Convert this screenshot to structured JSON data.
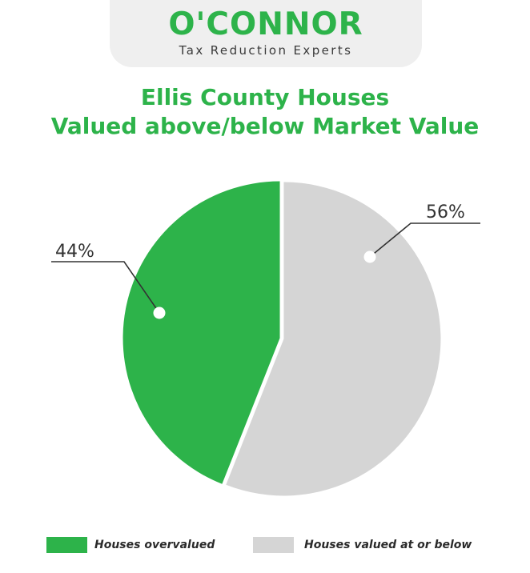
{
  "logo": {
    "brand": "O'CONNOR",
    "tagline": "Tax Reduction Experts"
  },
  "chart_data": {
    "type": "pie",
    "title_lines": [
      "Ellis County Houses",
      "Valued above/below Market Value"
    ],
    "slices": [
      {
        "label": "Houses overvalued",
        "value": 44,
        "value_label": "44%",
        "color": "#2db34a"
      },
      {
        "label": "Houses valued at or below",
        "value": 56,
        "value_label": "56%",
        "color": "#d5d5d5"
      }
    ],
    "legend_placement": "bottom"
  }
}
